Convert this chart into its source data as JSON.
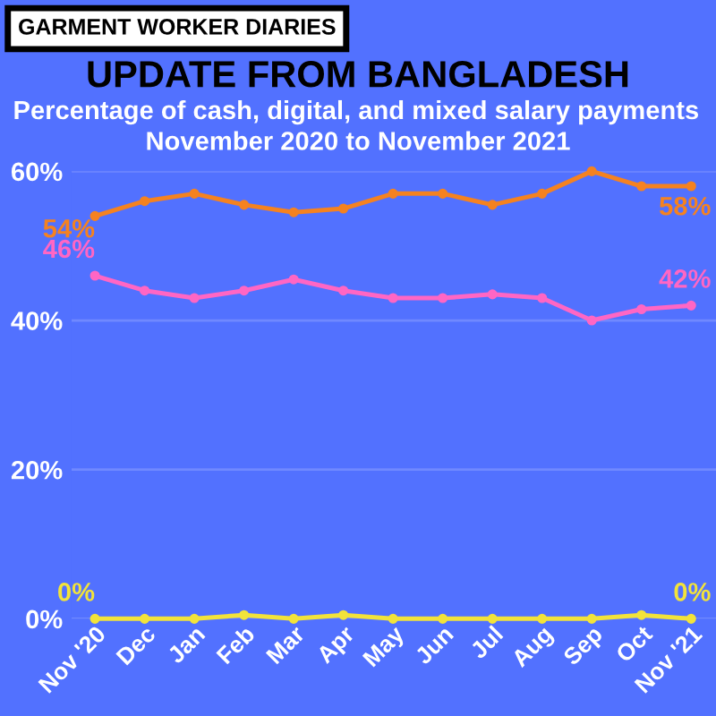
{
  "chart_data": {
    "type": "line",
    "title": "UPDATE FROM BANGLADESH",
    "subtitle": "Percentage of cash, digital, and mixed salary payments\nNovember 2020 to November 2021",
    "annotations": [
      "GARMENT WORKER DIARIES"
    ],
    "categories": [
      "Nov '20",
      "Dec",
      "Jan",
      "Feb",
      "Mar",
      "Apr",
      "May",
      "Jun",
      "Jul",
      "Aug",
      "Sep",
      "Oct",
      "Nov '21"
    ],
    "series": [
      {
        "color": "#f58220",
        "values": [
          54,
          56,
          57,
          55.5,
          54.5,
          55,
          57,
          57,
          55.5,
          57,
          60,
          58,
          58
        ],
        "value_labels": [
          "54%",
          null,
          null,
          null,
          null,
          null,
          null,
          null,
          null,
          null,
          null,
          null,
          "58%"
        ]
      },
      {
        "color": "#ff66c4",
        "values": [
          46,
          44,
          43,
          44,
          45.5,
          44,
          43,
          43,
          43.5,
          43,
          40,
          41.5,
          42
        ],
        "value_labels": [
          "46%",
          null,
          null,
          null,
          null,
          null,
          null,
          null,
          null,
          null,
          null,
          null,
          "42%"
        ]
      },
      {
        "color": "#f2e33a",
        "values": [
          0,
          0,
          0,
          0.5,
          0,
          0.5,
          0,
          0,
          0,
          0,
          0,
          0.5,
          0
        ],
        "value_labels": [
          "0%",
          null,
          null,
          null,
          null,
          null,
          null,
          null,
          null,
          null,
          null,
          null,
          "0%"
        ]
      }
    ],
    "ylim": [
      0,
      60
    ],
    "yticks": [
      {
        "value": 0,
        "label": "0%"
      },
      {
        "value": 20,
        "label": "20%"
      },
      {
        "value": 40,
        "label": "40%"
      },
      {
        "value": 60,
        "label": "60%"
      }
    ],
    "grid": "y",
    "legend": false,
    "marker": "circle",
    "line_style": "solid"
  }
}
